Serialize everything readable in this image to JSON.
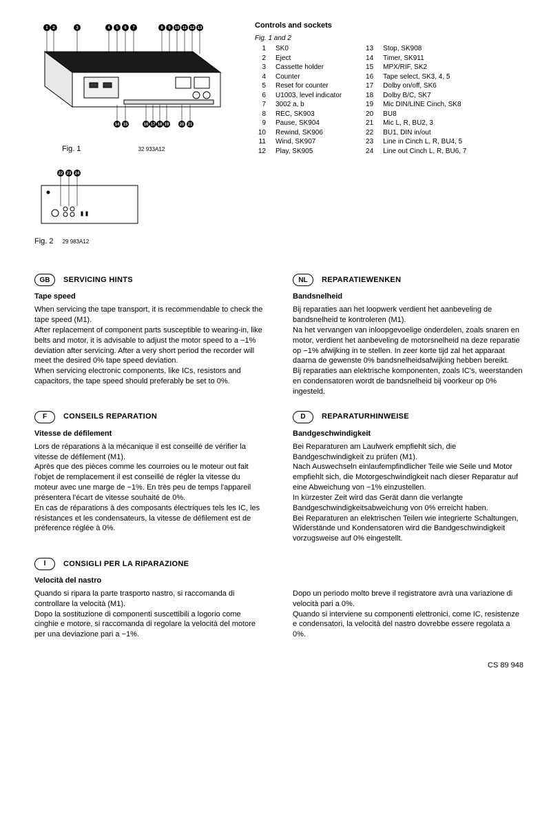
{
  "fig1": {
    "label": "Fig. 1",
    "code": "32 933A12"
  },
  "fig2": {
    "label": "Fig. 2",
    "code": "29 983A12"
  },
  "controls": {
    "title": "Controls and sockets",
    "sub": "Fig. 1 and 2",
    "col1": [
      {
        "n": "1",
        "t": "SK0"
      },
      {
        "n": "2",
        "t": "Eject"
      },
      {
        "n": "3",
        "t": "Cassette holder"
      },
      {
        "n": "4",
        "t": "Counter"
      },
      {
        "n": "5",
        "t": "Reset for counter"
      },
      {
        "n": "6",
        "t": "U1003, level indicator"
      },
      {
        "n": "7",
        "t": "3002 a, b"
      },
      {
        "n": "8",
        "t": "REC, SK903"
      },
      {
        "n": "9",
        "t": "Pause, SK904"
      },
      {
        "n": "10",
        "t": "Rewind, SK906"
      },
      {
        "n": "11",
        "t": "Wind, SK907"
      },
      {
        "n": "12",
        "t": "Play, SK905"
      }
    ],
    "col2": [
      {
        "n": "13",
        "t": "Stop, SK908"
      },
      {
        "n": "14",
        "t": "Timer, SK911"
      },
      {
        "n": "15",
        "t": "MPX/RIF, SK2"
      },
      {
        "n": "16",
        "t": "Tape select, SK3, 4, 5"
      },
      {
        "n": "17",
        "t": "Dolby on/off, SK6"
      },
      {
        "n": "18",
        "t": "Dolby B/C, SK7"
      },
      {
        "n": "19",
        "t": "Mic DIN/LINE Cinch, SK8"
      },
      {
        "n": "20",
        "t": "BU8"
      },
      {
        "n": "21",
        "t": "Mic L, R, BU2, 3"
      },
      {
        "n": "22",
        "t": "BU1, DIN in/out"
      },
      {
        "n": "23",
        "t": "Line in Cinch L, R, BU4, 5"
      },
      {
        "n": "24",
        "t": "Line out Cinch L, R, BU6, 7"
      }
    ]
  },
  "blocks": {
    "gb": {
      "lang": "GB",
      "title": "SERVICING HINTS",
      "sub": "Tape speed",
      "body": "When servicing the tape transport, it is recommendable to check the tape speed (M1).\nAfter replacement of component parts susceptible to wearing-in, like belts and motor, it is advisable to adjust the motor speed to a −1% deviation after servicing. After a very short period the recorder will meet the desired 0% tape speed deviation.\nWhen servicing electronic components, like ICs, resistors and capacitors, the tape speed should preferably be set to 0%."
    },
    "nl": {
      "lang": "NL",
      "title": "REPARATIEWENKEN",
      "sub": "Bandsnelheid",
      "body": "Bij reparaties aan het loopwerk verdient het aanbeveling de bandsnelheid te kontroleren (M1).\nNa het vervangen van inloopgevoelige onderdelen, zoals snaren en motor, verdient het aanbeveling de motorsnelheid na deze reparatie op −1% afwijking in te stellen. In zeer korte tijd zal het apparaat daarna de gewenste 0% bandsnelheidsafwijking hebben bereikt.\nBij reparaties aan elektrische komponenten, zoals IC's, weerstanden en condensatoren wordt de bandsnelheid bij voorkeur op 0% ingesteld."
    },
    "f": {
      "lang": "F",
      "title": "CONSEILS REPARATION",
      "sub": "Vitesse de défilement",
      "body": "Lors de réparations à la mécanique il est conseillé de vérifier la vitesse de défilement (M1).\nAprès que des pièces comme les courroies ou le moteur out fait l'objet de remplacement il est conseillé de régler la vitesse du moteur avec une marge de −1%. En très peu de temps l'appareil présentera l'écart de vitesse souhaité de 0%.\nEn cas de réparations à des composants électriques tels les IC, les résistances et les condensateurs, la vitesse de défilement est de préference réglée à 0%."
    },
    "d": {
      "lang": "D",
      "title": "REPARATURHINWEISE",
      "sub": "Bandgeschwindigkeit",
      "body": "Bei Reparaturen am Laufwerk empfiehlt sich, die Bandgeschwindigkeit zu prüfen (M1).\nNach Auswechseln einlaufempfindlicher Teile wie Seile und Motor empfiehlt sich, die Motorgeschwindigkeit nach dieser Reparatur auf eine Abweichung von −1% einzustellen.\nIn kürzester Zeit wird das Gerät dann die verlangte Bandgeschwindigkeitsabweichung von 0% erreicht haben.\nBei Reparaturen an elektrischen Teilen wie integrierte Schaltungen, Widerstände und Kondensatoren wird die Bandgeschwindigkeit vorzugsweise auf 0% eingestellt."
    },
    "i": {
      "lang": "I",
      "title": "CONSIGLI PER LA RIPARAZIONE",
      "sub": "Velocità del nastro",
      "body_left": "Quando si ripara la parte trasporto nastro, si raccomanda di controllare la velocità (M1).\nDopo la sostituzione di componenti suscettibili a logorio come cinghie e motore, si raccomanda di regolare la velocità del motore per una deviazione pari a −1%.",
      "body_right": "Dopo un periodo molto breve il registratore avrà una variazione di velocità pari a 0%.\nQuando si interviene su componenti elettronici, come IC, resistenze e condensatori, la velocità del nastro dovrebbe essere regolata a 0%."
    }
  },
  "footer": "CS 89 948",
  "callouts_fig1_top": [
    "1",
    "2",
    "3",
    "4",
    "5",
    "6",
    "7",
    "8",
    "9",
    "10",
    "11",
    "12",
    "13"
  ],
  "callouts_fig1_bottom": [
    "14",
    "15",
    "16",
    "17",
    "18",
    "19",
    "20",
    "21"
  ],
  "callouts_fig2": [
    "22",
    "23",
    "24"
  ]
}
